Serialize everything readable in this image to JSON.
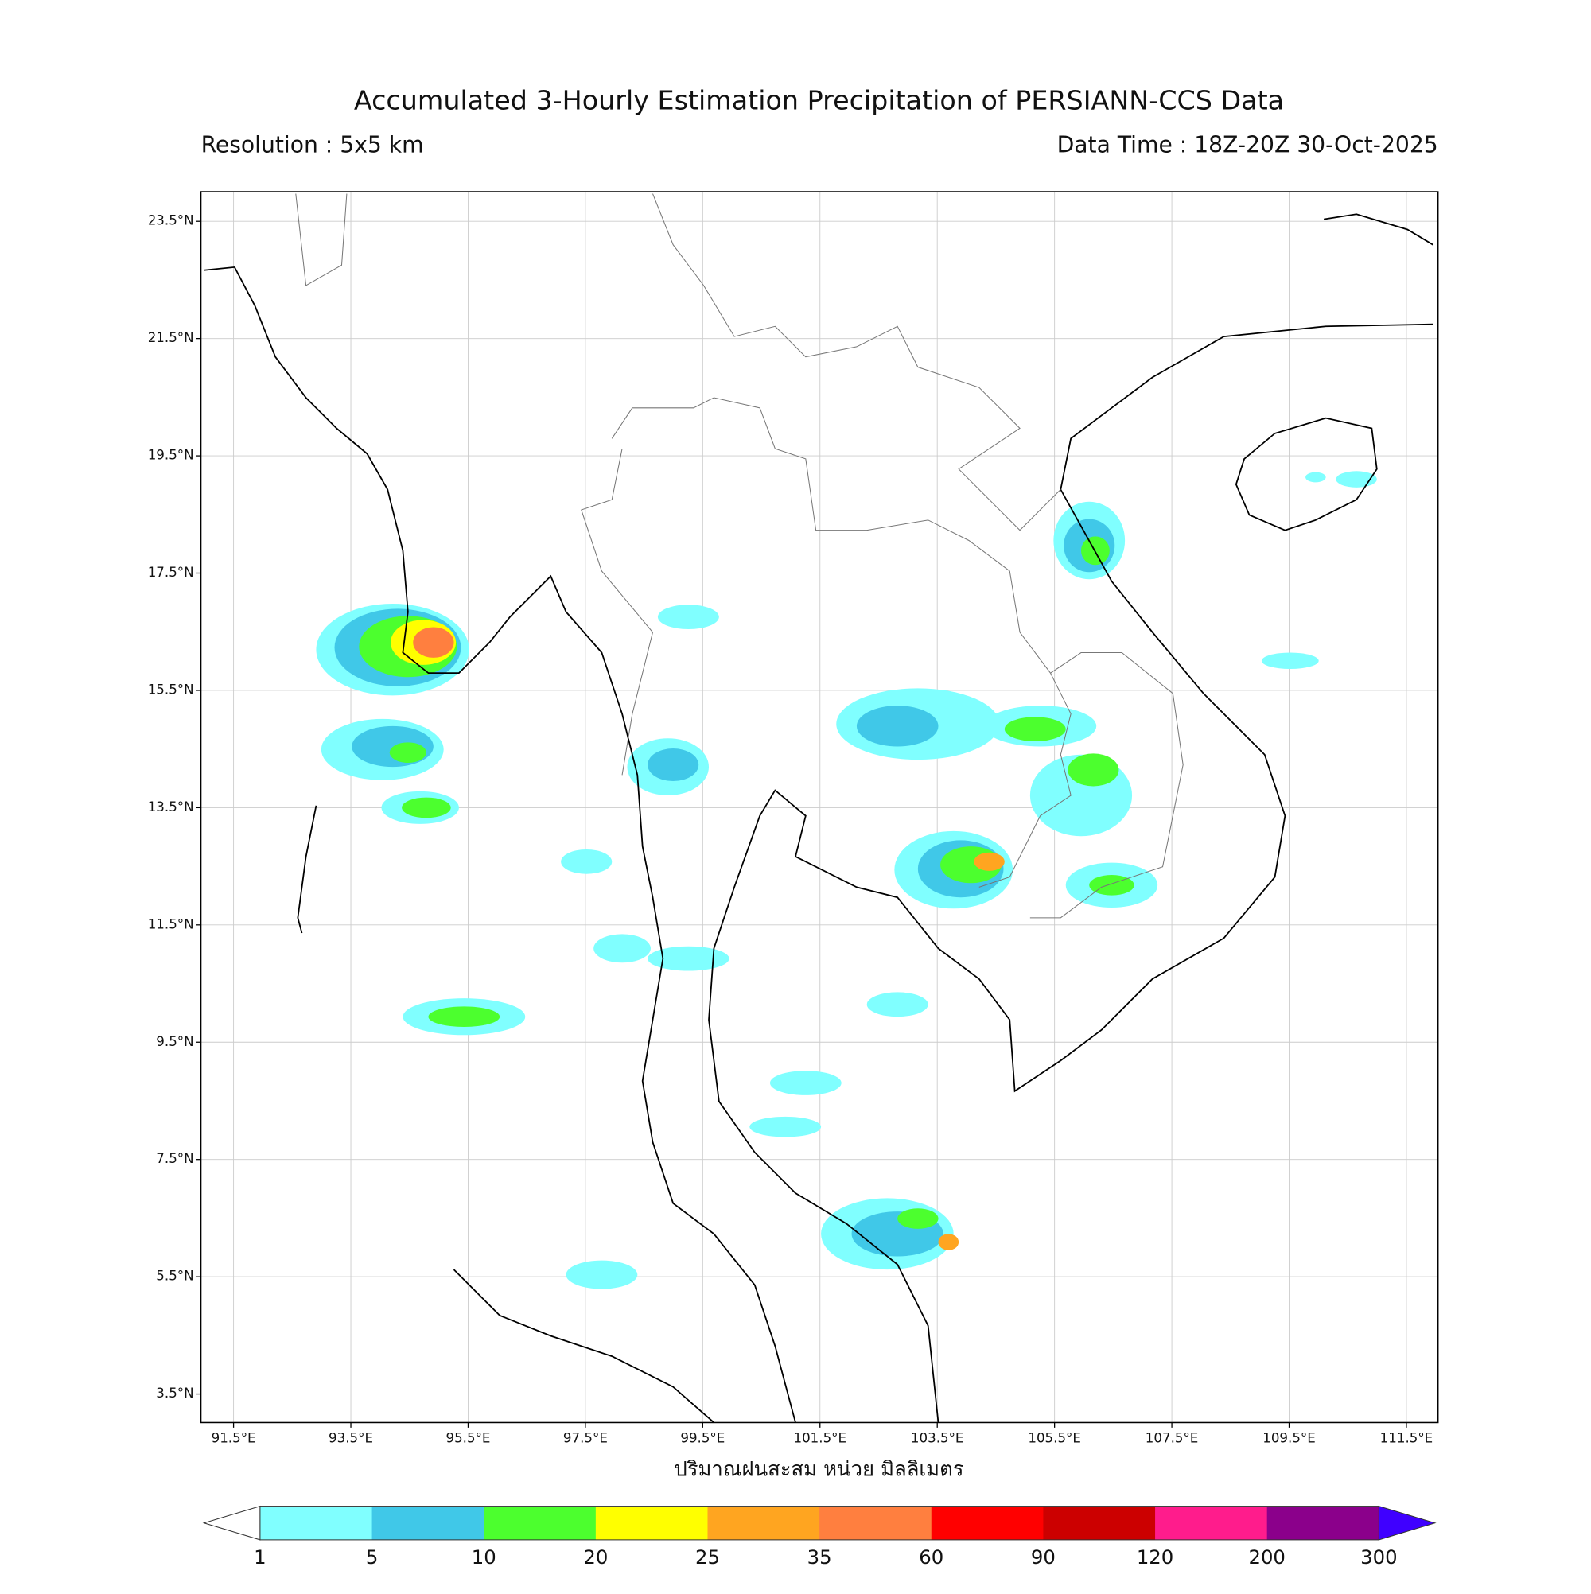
{
  "header": {
    "title": "Accumulated 3-Hourly Estimation Precipitation of PERSIANN-CCS Data",
    "resolution": "Resolution : 5x5 km",
    "data_time": "Data Time : 18Z-20Z 30-Oct-2025"
  },
  "map": {
    "lat_ticks": [
      "23.5°N",
      "21.5°N",
      "19.5°N",
      "17.5°N",
      "15.5°N",
      "13.5°N",
      "11.5°N",
      "9.5°N",
      "7.5°N",
      "5.5°N",
      "3.5°N"
    ],
    "lon_ticks": [
      "91.5°E",
      "93.5°E",
      "95.5°E",
      "97.5°E",
      "99.5°E",
      "101.5°E",
      "103.5°E",
      "105.5°E",
      "107.5°E",
      "109.5°E",
      "111.5°E"
    ],
    "xlabel": "ปริมาณฝนสะสม หน่วย มิลลิเมตร"
  },
  "colorbar": {
    "bounds": [
      1,
      5,
      10,
      20,
      25,
      35,
      60,
      90,
      120,
      200,
      300
    ],
    "colors": [
      "#80ffff",
      "#40c8e8",
      "#4cff2e",
      "#ffff00",
      "#ffa520",
      "#ff7f3f",
      "#ff0000",
      "#cc0000",
      "#ff1c8c",
      "#8b008b"
    ],
    "under_color": "#ffffff",
    "over_color": "#3f00ff"
  }
}
